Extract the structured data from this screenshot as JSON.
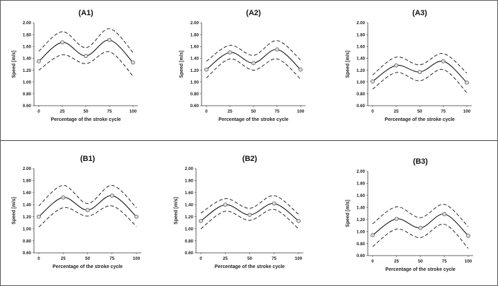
{
  "chart_data": [
    {
      "id": "A1",
      "type": "line",
      "title": "(A1)",
      "xlabel": "Percentage of the stroke cycle",
      "ylabel": "Speed [m/s]",
      "x": [
        0,
        25,
        50,
        75,
        100
      ],
      "ylim": [
        0.6,
        2.0
      ],
      "yticks": [
        "0.60",
        "0.80",
        "1.00",
        "1.20",
        "1.40",
        "1.60",
        "1.80",
        "2.00"
      ],
      "xticks": [
        "0",
        "25",
        "50",
        "75",
        "100"
      ],
      "series": [
        {
          "role": "mean",
          "values": [
            1.35,
            1.67,
            1.44,
            1.71,
            1.33
          ]
        },
        {
          "role": "upper",
          "values": [
            1.52,
            1.85,
            1.58,
            1.9,
            1.5
          ]
        },
        {
          "role": "lower",
          "values": [
            1.2,
            1.46,
            1.31,
            1.51,
            1.1
          ]
        }
      ]
    },
    {
      "id": "A2",
      "type": "line",
      "title": "(A2)",
      "xlabel": "Percentage of the stroke cycle",
      "ylabel": "Speed [m/s]",
      "x": [
        0,
        25,
        50,
        75,
        100
      ],
      "ylim": [
        0.6,
        2.0
      ],
      "yticks": [
        "0.60",
        "0.80",
        "1.00",
        "1.20",
        "1.40",
        "1.60",
        "1.80",
        "2.00"
      ],
      "xticks": [
        "0",
        "25",
        "50",
        "75",
        "100"
      ],
      "series": [
        {
          "role": "mean",
          "values": [
            1.21,
            1.5,
            1.32,
            1.55,
            1.21
          ]
        },
        {
          "role": "upper",
          "values": [
            1.35,
            1.62,
            1.45,
            1.7,
            1.37
          ]
        },
        {
          "role": "lower",
          "values": [
            1.07,
            1.39,
            1.2,
            1.39,
            1.05
          ]
        }
      ]
    },
    {
      "id": "A3",
      "type": "line",
      "title": "(A3)",
      "xlabel": "Percentage of the stroke cycle",
      "ylabel": "Speed [m/s]",
      "x": [
        0,
        25,
        50,
        75,
        100
      ],
      "ylim": [
        0.6,
        2.0
      ],
      "yticks": [
        "0.60",
        "0.80",
        "1.00",
        "1.20",
        "1.40",
        "1.60",
        "1.80",
        "2.00"
      ],
      "xticks": [
        "0",
        "25",
        "50",
        "75",
        "100"
      ],
      "series": [
        {
          "role": "mean",
          "values": [
            1.01,
            1.28,
            1.17,
            1.35,
            0.99
          ]
        },
        {
          "role": "upper",
          "values": [
            1.12,
            1.42,
            1.29,
            1.48,
            1.15
          ]
        },
        {
          "role": "lower",
          "values": [
            0.88,
            1.16,
            1.02,
            1.21,
            0.82
          ]
        }
      ]
    },
    {
      "id": "B1",
      "type": "line",
      "title": "(B1)",
      "xlabel": "Percentage of the stroke cycle",
      "ylabel": "Speed [m/s]",
      "x": [
        0,
        25,
        50,
        75,
        100
      ],
      "ylim": [
        0.6,
        2.0
      ],
      "yticks": [
        "0.60",
        "0.80",
        "1.00",
        "1.20",
        "1.40",
        "1.60",
        "1.80",
        "2.00"
      ],
      "xticks": [
        "0",
        "25",
        "50",
        "75",
        "100"
      ],
      "series": [
        {
          "role": "mean",
          "values": [
            1.2,
            1.52,
            1.31,
            1.55,
            1.2
          ]
        },
        {
          "role": "upper",
          "values": [
            1.38,
            1.72,
            1.42,
            1.72,
            1.35
          ]
        },
        {
          "role": "lower",
          "values": [
            1.03,
            1.35,
            1.21,
            1.38,
            1.04
          ]
        }
      ]
    },
    {
      "id": "B2",
      "type": "line",
      "title": "(B2)",
      "xlabel": "Percentage of the stroke cycle",
      "ylabel": "Speed [m/s]",
      "x": [
        0,
        25,
        50,
        75,
        100
      ],
      "ylim": [
        0.6,
        2.0
      ],
      "yticks": [
        "0.60",
        "0.80",
        "1.00",
        "1.20",
        "1.40",
        "1.60",
        "1.80",
        "2.00"
      ],
      "xticks": [
        "0",
        "25",
        "50",
        "75",
        "100"
      ],
      "series": [
        {
          "role": "mean",
          "values": [
            1.13,
            1.4,
            1.23,
            1.42,
            1.13
          ]
        },
        {
          "role": "upper",
          "values": [
            1.26,
            1.5,
            1.34,
            1.55,
            1.24
          ]
        },
        {
          "role": "lower",
          "values": [
            1.0,
            1.29,
            1.14,
            1.32,
            1.0
          ]
        }
      ]
    },
    {
      "id": "B3",
      "type": "line",
      "title": "(B3)",
      "xlabel": "Percentage of the stroke cycle",
      "ylabel": "Speed [m/s]",
      "x": [
        0,
        25,
        50,
        75,
        100
      ],
      "ylim": [
        0.6,
        2.0
      ],
      "yticks": [
        "0.60",
        "0.80",
        "1.00",
        "1.20",
        "1.40",
        "1.60",
        "1.80",
        "2.00"
      ],
      "xticks": [
        "0",
        "25",
        "50",
        "75",
        "100"
      ],
      "series": [
        {
          "role": "mean",
          "values": [
            0.94,
            1.21,
            1.06,
            1.29,
            0.93
          ]
        },
        {
          "role": "upper",
          "values": [
            1.13,
            1.41,
            1.23,
            1.45,
            1.08
          ]
        },
        {
          "role": "lower",
          "values": [
            0.75,
            1.04,
            0.9,
            1.12,
            0.72
          ]
        }
      ]
    }
  ]
}
